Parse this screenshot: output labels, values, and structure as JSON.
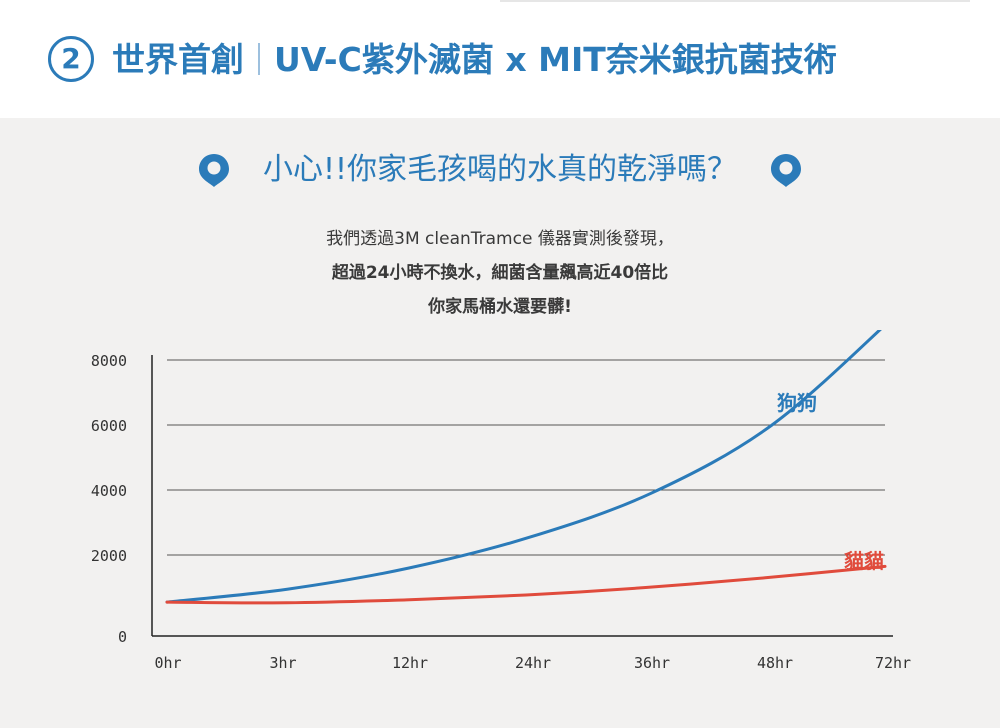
{
  "header": {
    "step_number": "2",
    "title_left": "世界首創",
    "title_right": "UV-C紫外滅菌 x MIT奈米銀抗菌技術"
  },
  "headline": {
    "text": "小心!!你家毛孩喝的水真的乾淨嗎？",
    "left_icon": "location-pin-icon",
    "right_icon": "location-pin-icon"
  },
  "description": {
    "line1": "我們透過3M cleanTramce 儀器實測後發現，",
    "line2": "超過24小時不換水，細菌含量飆高近40倍比",
    "line3": "你家馬桶水還要髒!"
  },
  "colors": {
    "brand_blue": "#2b7bb9",
    "accent_red": "#e04b3c",
    "panel_bg": "#f2f1f0"
  },
  "chart_data": {
    "type": "line",
    "categories": [
      "0hr",
      "3hr",
      "12hr",
      "24hr",
      "36hr",
      "48hr",
      "72hr"
    ],
    "y_ticks": [
      "0",
      "2000",
      "4000",
      "6000",
      "8000"
    ],
    "ylim": [
      0,
      9000
    ],
    "grid": true,
    "series": [
      {
        "name": "狗狗",
        "color": "#2b7bb9",
        "values": [
          550,
          950,
          1600,
          2550,
          3900,
          6000,
          9300
        ]
      },
      {
        "name": "貓貓",
        "color": "#e04b3c",
        "values": [
          550,
          530,
          620,
          770,
          1000,
          1300,
          1650
        ]
      }
    ]
  }
}
